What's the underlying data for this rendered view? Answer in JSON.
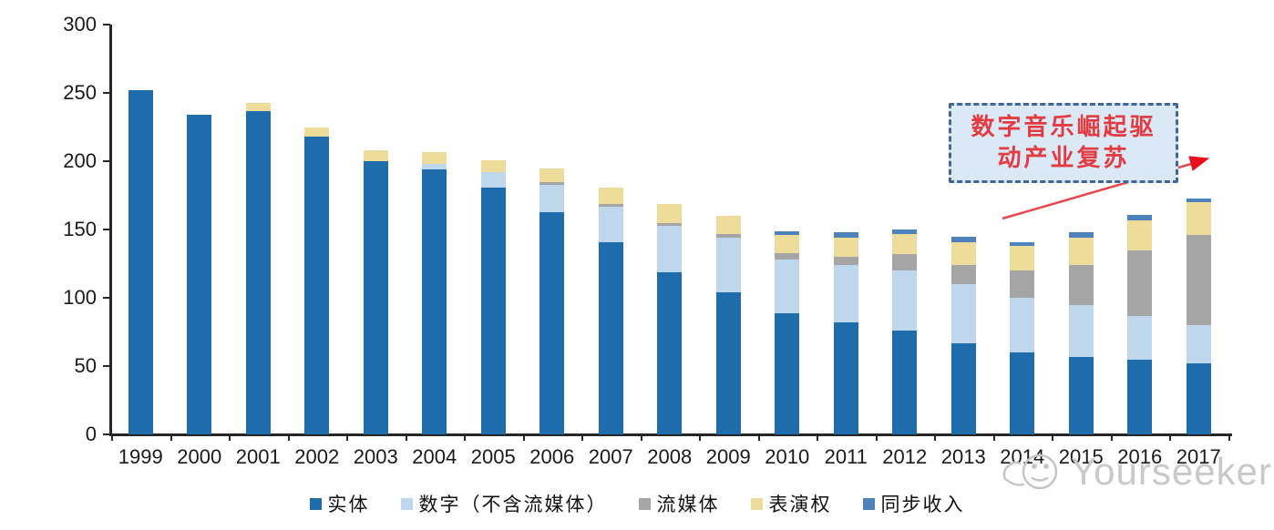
{
  "chart_data": {
    "type": "bar",
    "stacked": true,
    "title": "",
    "xlabel": "",
    "ylabel": "",
    "categories": [
      "1999",
      "2000",
      "2001",
      "2002",
      "2003",
      "2004",
      "2005",
      "2006",
      "2007",
      "2008",
      "2009",
      "2010",
      "2011",
      "2012",
      "2013",
      "2014",
      "2015",
      "2016",
      "2017"
    ],
    "series": [
      {
        "name": "实体",
        "color": "#1e6cab",
        "values": [
          252,
          234,
          237,
          218,
          200,
          194,
          181,
          163,
          141,
          119,
          104,
          89,
          82,
          76,
          67,
          60,
          57,
          55,
          52
        ]
      },
      {
        "name": "数字（不含流媒体）",
        "color": "#bed7ec",
        "values": [
          0,
          0,
          0,
          0,
          0,
          4,
          11,
          20,
          26,
          34,
          40,
          39,
          42,
          44,
          43,
          40,
          38,
          32,
          28
        ]
      },
      {
        "name": "流媒体",
        "color": "#a5a5a5",
        "values": [
          0,
          0,
          0,
          0,
          0,
          0,
          0,
          2,
          2,
          2,
          3,
          5,
          6,
          12,
          14,
          20,
          29,
          48,
          66
        ]
      },
      {
        "name": "表演权",
        "color": "#eedc9b",
        "values": [
          0,
          0,
          6,
          7,
          8,
          9,
          9,
          10,
          12,
          14,
          13,
          13,
          14,
          15,
          17,
          18,
          20,
          22,
          24
        ]
      },
      {
        "name": "同步收入",
        "color": "#4e82bd",
        "values": [
          0,
          0,
          0,
          0,
          0,
          0,
          0,
          0,
          0,
          0,
          0,
          3,
          4,
          3,
          4,
          3,
          4,
          4,
          3
        ]
      }
    ],
    "ylim": [
      0,
      300
    ],
    "yticks": [
      0,
      50,
      100,
      150,
      200,
      250,
      300
    ],
    "grid": false,
    "legend_position": "bottom",
    "annotation_text": "数字音乐崛起驱动产业复苏"
  },
  "annotation": {
    "line1": "数字音乐崛起驱",
    "line2": "动产业复苏"
  },
  "watermark": {
    "text": "Yourseeker"
  },
  "colors": {
    "annotation_text": "#e23b41",
    "annotation_fill": "#dbe8f6",
    "annotation_border": "#44659b",
    "arrow": "#e8474d",
    "axis": "#262626",
    "watermark": "#c9c9c9"
  }
}
